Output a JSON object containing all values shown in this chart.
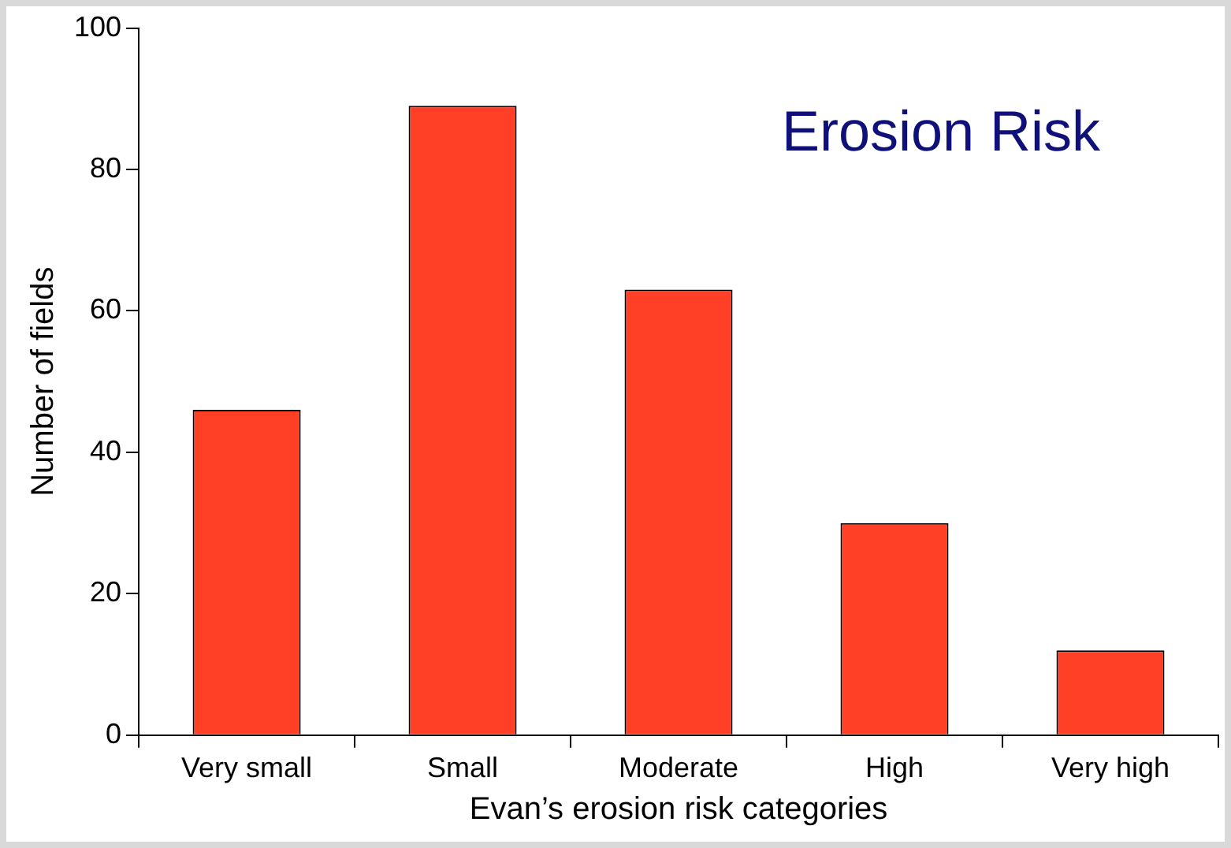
{
  "chart_data": {
    "type": "bar",
    "title": "Erosion Risk",
    "xlabel": "Evan’s erosion risk categories",
    "ylabel": "Number of fields",
    "categories": [
      "Very small",
      "Small",
      "Moderate",
      "High",
      "Very high"
    ],
    "values": [
      46,
      89,
      63,
      30,
      12
    ],
    "color": "#ff4027",
    "ylim": [
      0,
      100
    ],
    "yticks": [
      0,
      20,
      40,
      60,
      80,
      100
    ],
    "grid": false,
    "legend": false
  }
}
